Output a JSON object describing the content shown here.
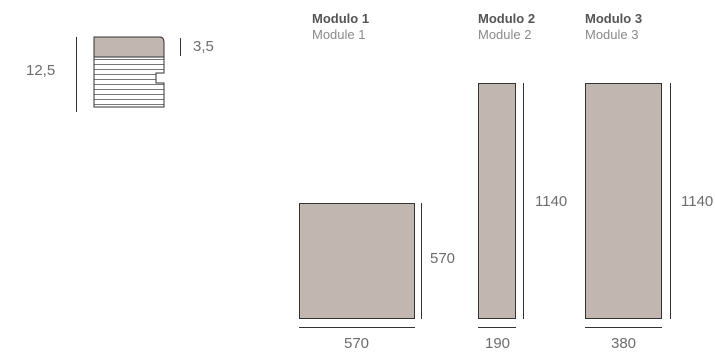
{
  "profile": {
    "total_height": "12,5",
    "top_thickness": "3,5"
  },
  "modules": [
    {
      "title": "Modulo 1",
      "subtitle": "Module 1",
      "width": "570",
      "height": "570"
    },
    {
      "title": "Modulo 2",
      "subtitle": "Module 2",
      "width": "190",
      "height": "1140"
    },
    {
      "title": "Modulo 3",
      "subtitle": "Module 3",
      "width": "380",
      "height": "1140"
    }
  ],
  "colors": {
    "panel_fill": "#c1b6b0",
    "line": "#333333",
    "text": "#6d6d6d"
  }
}
